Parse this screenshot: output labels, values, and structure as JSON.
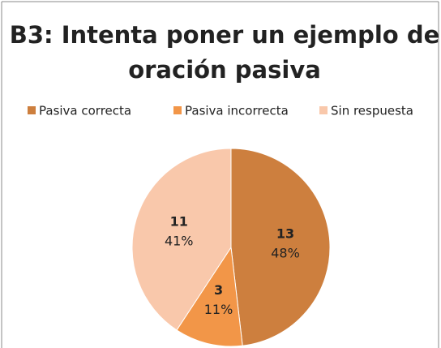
{
  "chart_data": {
    "type": "pie",
    "title": [
      "B3: Intenta poner un ejemplo de",
      "oración pasiva"
    ],
    "categories": [
      "Pasiva correcta",
      "Pasiva incorrecta",
      "Sin respuesta"
    ],
    "values": [
      13,
      3,
      11
    ],
    "percent_labels": [
      "48%",
      "11%",
      "41%"
    ],
    "colors": [
      "#cd7f3e",
      "#f29648",
      "#f9c8ab"
    ],
    "legend": "top"
  }
}
